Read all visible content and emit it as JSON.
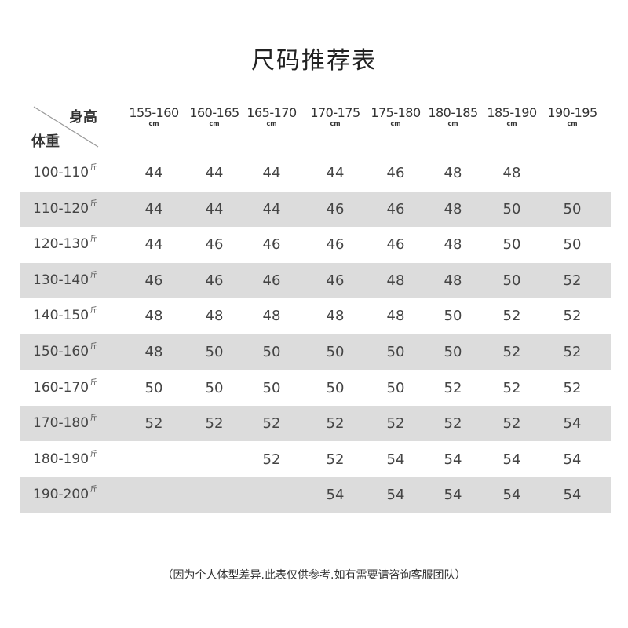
{
  "title": "尺码推荐表",
  "corner": {
    "height_label": "身高",
    "weight_label": "体重"
  },
  "height_unit": "cm",
  "weight_unit": "斤",
  "columns": [
    "155-160",
    "160-165",
    "165-170",
    "170-175",
    "175-180",
    "180-185",
    "185-190",
    "190-195"
  ],
  "rows": [
    {
      "weight": "100-110",
      "sizes": [
        "44",
        "44",
        "44",
        "44",
        "46",
        "48",
        "48",
        ""
      ]
    },
    {
      "weight": "110-120",
      "sizes": [
        "44",
        "44",
        "44",
        "46",
        "46",
        "48",
        "50",
        "50"
      ]
    },
    {
      "weight": "120-130",
      "sizes": [
        "44",
        "46",
        "46",
        "46",
        "46",
        "48",
        "50",
        "50"
      ]
    },
    {
      "weight": "130-140",
      "sizes": [
        "46",
        "46",
        "46",
        "46",
        "48",
        "48",
        "50",
        "52"
      ]
    },
    {
      "weight": "140-150",
      "sizes": [
        "48",
        "48",
        "48",
        "48",
        "48",
        "50",
        "52",
        "52"
      ]
    },
    {
      "weight": "150-160",
      "sizes": [
        "48",
        "50",
        "50",
        "50",
        "50",
        "50",
        "52",
        "52"
      ]
    },
    {
      "weight": "160-170",
      "sizes": [
        "50",
        "50",
        "50",
        "50",
        "50",
        "52",
        "52",
        "52"
      ]
    },
    {
      "weight": "170-180",
      "sizes": [
        "52",
        "52",
        "52",
        "52",
        "52",
        "52",
        "52",
        "54"
      ]
    },
    {
      "weight": "180-190",
      "sizes": [
        "",
        "",
        "52",
        "52",
        "54",
        "54",
        "54",
        "54"
      ]
    },
    {
      "weight": "190-200",
      "sizes": [
        "",
        "",
        "",
        "54",
        "54",
        "54",
        "54",
        "54"
      ]
    }
  ],
  "colors": {
    "stripe": "#dcdcdc",
    "text": "#444444"
  },
  "footnote": "（因为个人体型差异.此表仅供参考.如有需要请咨询客服团队）"
}
